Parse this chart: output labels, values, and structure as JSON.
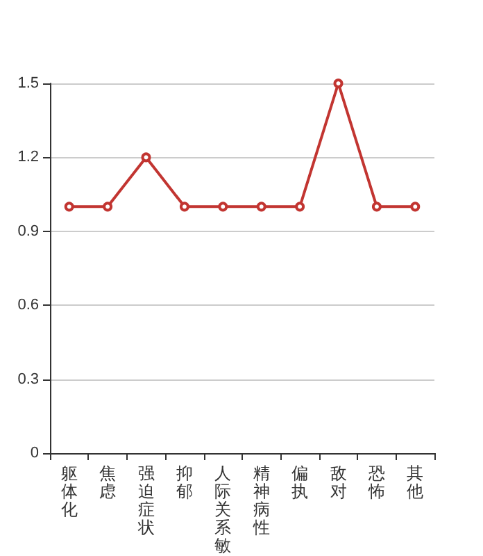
{
  "chart_data": {
    "type": "line",
    "categories": [
      "躯体化",
      "焦虑",
      "强迫症状",
      "抑郁",
      "人际关系敏",
      "精神病性",
      "偏执",
      "敌对",
      "恐怖",
      "其他"
    ],
    "series": [
      {
        "color": "#c23531",
        "values": [
          1.0,
          1.0,
          1.2,
          1.0,
          1.0,
          1.0,
          1.0,
          1.5,
          1.0,
          1.0
        ]
      }
    ],
    "ylim": [
      0,
      1.5
    ],
    "yticks": [
      0,
      0.3,
      0.6,
      0.9,
      1.2,
      1.5
    ],
    "grid": "y",
    "marker": "circle",
    "line_style": "solid"
  }
}
